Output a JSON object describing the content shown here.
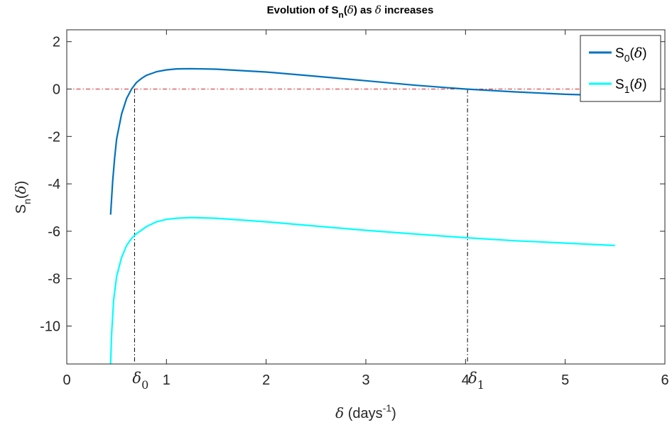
{
  "chart_data": {
    "type": "line",
    "title": {
      "prefix": "Evolution of S",
      "sub": "n",
      "paren_open": "(",
      "symbol": "δ",
      "paren_close": ")",
      "suffix": " as ",
      "symbol2": "δ",
      "tail": " increases"
    },
    "xlabel": {
      "symbol": "δ",
      "text": " (days",
      "sup": "-1",
      "close": ")"
    },
    "ylabel": {
      "base": "S",
      "sub": "n",
      "open": "(",
      "symbol": "δ",
      "close": ")"
    },
    "xlim": [
      0,
      6
    ],
    "ylim": [
      -11.6,
      2.5
    ],
    "xticks": [
      "0",
      "1",
      "2",
      "3",
      "4",
      "5",
      "6"
    ],
    "xtick_values": [
      0,
      1,
      2,
      3,
      4,
      5,
      6
    ],
    "yticks": [
      "2",
      "0",
      "-2",
      "-4",
      "-6",
      "-8",
      "-10"
    ],
    "ytick_values": [
      2,
      0,
      -2,
      -4,
      -6,
      -8,
      -10
    ],
    "grid": false,
    "legend_position": "top-right",
    "series": [
      {
        "label": {
          "base": "S",
          "sub": "0",
          "open": "(",
          "symbol": "δ",
          "close": ")"
        },
        "color": "#0072bd",
        "x": [
          0.44,
          0.46,
          0.48,
          0.5,
          0.55,
          0.6,
          0.65,
          0.7,
          0.75,
          0.8,
          0.9,
          1.0,
          1.1,
          1.25,
          1.5,
          2.0,
          2.5,
          3.0,
          3.5,
          4.0,
          4.5,
          5.0,
          5.25
        ],
        "y": [
          -5.3,
          -3.9,
          -2.9,
          -2.1,
          -1.05,
          -0.4,
          0.0,
          0.28,
          0.45,
          0.58,
          0.73,
          0.81,
          0.85,
          0.86,
          0.84,
          0.72,
          0.54,
          0.35,
          0.16,
          0.0,
          -0.12,
          -0.22,
          -0.25
        ]
      },
      {
        "label": {
          "base": "S",
          "sub": "1",
          "open": "(",
          "symbol": "δ",
          "close": ")"
        },
        "color": "#00ffff",
        "x": [
          0.44,
          0.45,
          0.47,
          0.5,
          0.55,
          0.6,
          0.65,
          0.7,
          0.8,
          0.9,
          1.0,
          1.1,
          1.25,
          1.5,
          2.0,
          2.5,
          3.0,
          3.5,
          4.0,
          4.5,
          5.0,
          5.5
        ],
        "y": [
          -11.6,
          -10.3,
          -8.9,
          -7.9,
          -7.1,
          -6.6,
          -6.3,
          -6.1,
          -5.8,
          -5.6,
          -5.5,
          -5.45,
          -5.42,
          -5.45,
          -5.6,
          -5.78,
          -5.96,
          -6.12,
          -6.27,
          -6.4,
          -6.5,
          -6.6
        ]
      }
    ],
    "reference_lines": {
      "horizontal": {
        "y": 0,
        "color": "#d62728"
      },
      "vertical": [
        {
          "x": 0.68,
          "label": {
            "symbol": "δ",
            "sub": "0"
          }
        },
        {
          "x": 4.02,
          "label": {
            "symbol": "δ",
            "sub": "1"
          }
        }
      ]
    }
  }
}
